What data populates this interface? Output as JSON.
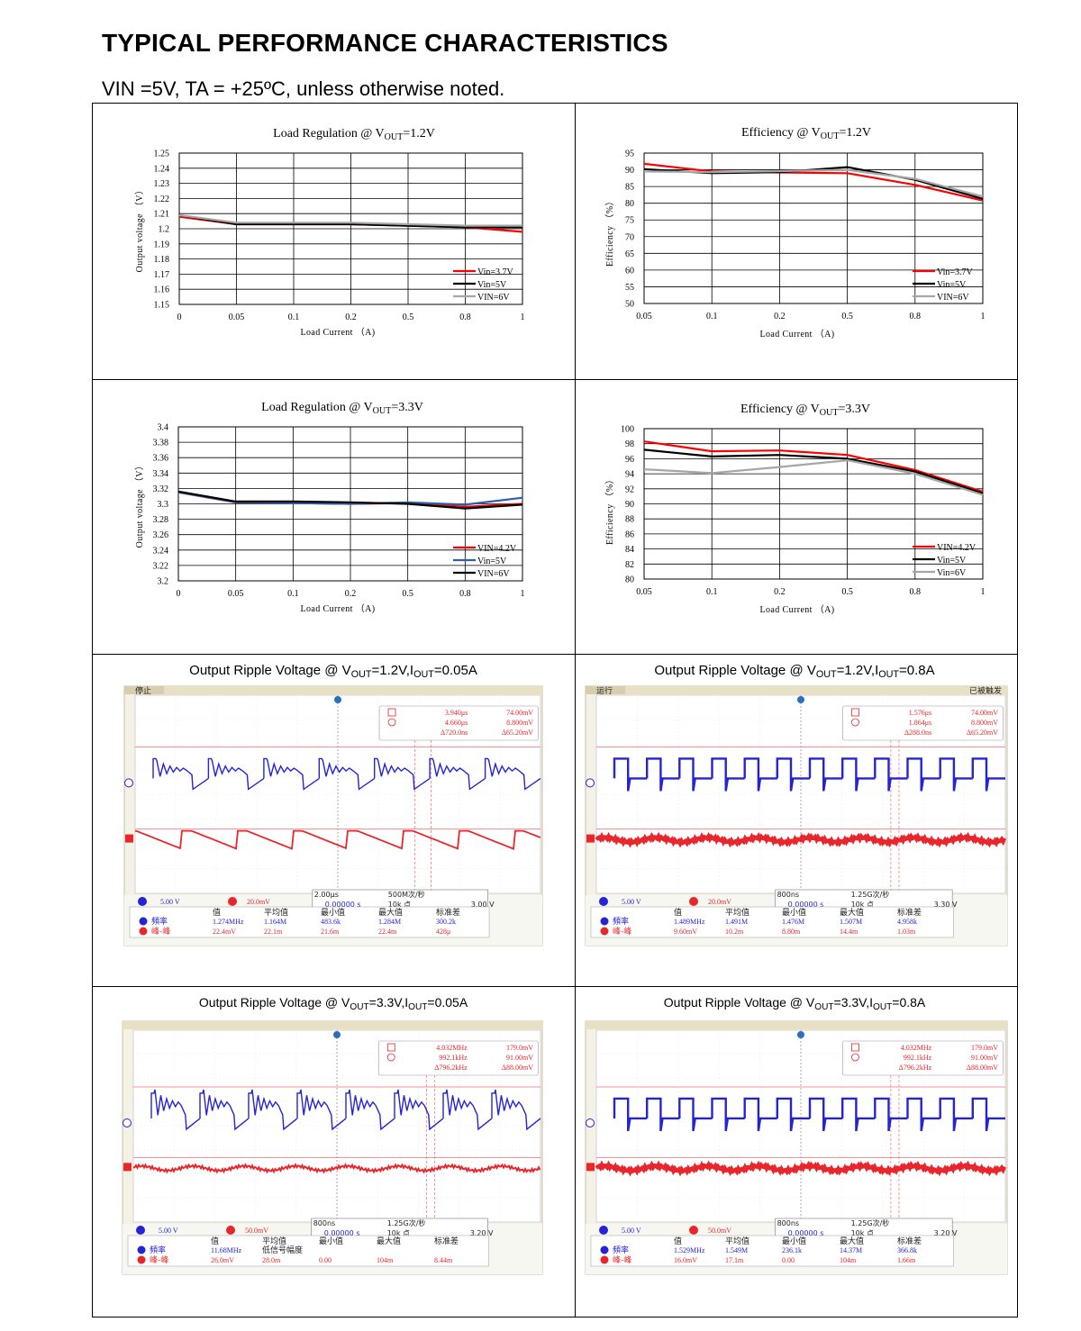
{
  "heading": "TYPICAL PERFORMANCE CHARACTERISTICS",
  "subheading": "VIN =5V, TA = +25ºC, unless otherwise noted.",
  "chart_data": [
    {
      "type": "line",
      "title": "Load Regulation @ VOUT=1.2V",
      "title_parts": {
        "pre": "Load Regulation @ V",
        "sub": "OUT",
        "post": "=1.2V"
      },
      "xlabel": "Load Current （A)",
      "ylabel": "Output voltage （V）",
      "x": [
        "0",
        "0.05",
        "0.1",
        "0.2",
        "0.5",
        "0.8",
        "1"
      ],
      "yticks": [
        "1.25",
        "1.24",
        "1.23",
        "1.22",
        "1.21",
        "1.2",
        "1.19",
        "1.18",
        "1.17",
        "1.16",
        "1.15"
      ],
      "ylim": [
        1.15,
        1.25
      ],
      "series": [
        {
          "name": "Vin=3.7V",
          "color": "#ff0000",
          "values": [
            1.208,
            1.203,
            1.203,
            1.203,
            1.202,
            1.201,
            1.198
          ]
        },
        {
          "name": "Vin=5V",
          "color": "#000000",
          "values": [
            1.209,
            1.203,
            1.203,
            1.203,
            1.202,
            1.201,
            1.201
          ]
        },
        {
          "name": "VIN=6V",
          "color": "#a6a6a6",
          "values": [
            1.209,
            1.204,
            1.204,
            1.204,
            1.203,
            1.202,
            1.202
          ]
        }
      ],
      "legend": "bottom-right",
      "grid": true
    },
    {
      "type": "line",
      "title": "Efficiency @ VOUT=1.2V",
      "title_parts": {
        "pre": "Efficiency @ V",
        "sub": "OUT",
        "post": "=1.2V"
      },
      "xlabel": "Load Current （A)",
      "ylabel": "Efficiency （%）",
      "x": [
        "0.05",
        "0.1",
        "0.2",
        "0.5",
        "0.8",
        "1"
      ],
      "yticks": [
        "95",
        "90",
        "85",
        "80",
        "75",
        "70",
        "65",
        "60",
        "55",
        "50"
      ],
      "ylim": [
        50,
        95
      ],
      "series": [
        {
          "name": "Vin=3.7V",
          "color": "#ff0000",
          "values": [
            91.8,
            89.5,
            89.2,
            89.0,
            85.5,
            80.8
          ]
        },
        {
          "name": "Vin=5V",
          "color": "#000000",
          "values": [
            90.2,
            89.0,
            89.3,
            90.8,
            87.0,
            81.3
          ]
        },
        {
          "name": "VIN=6V",
          "color": "#a6a6a6",
          "values": [
            89.5,
            89.3,
            89.6,
            90.0,
            87.3,
            82.0
          ]
        }
      ],
      "legend": "bottom-right",
      "grid": true
    },
    {
      "type": "line",
      "title": "Load Regulation @ VOUT=3.3V",
      "title_parts": {
        "pre": "Load Regulation @ V",
        "sub": "OUT",
        "post": "=3.3V"
      },
      "xlabel": "Load Current （A)",
      "ylabel": "Output voltage （V）",
      "x": [
        "0",
        "0.05",
        "0.1",
        "0.2",
        "0.5",
        "0.8",
        "1"
      ],
      "yticks": [
        "3.4",
        "3.38",
        "3.36",
        "3.34",
        "3.32",
        "3.3",
        "3.28",
        "3.26",
        "3.24",
        "3.22",
        "3.2"
      ],
      "ylim": [
        3.2,
        3.4
      ],
      "series": [
        {
          "name": "VIN=4.2V",
          "color": "#ff0000",
          "values": [
            3.315,
            3.302,
            3.301,
            3.3,
            3.301,
            3.296,
            3.3
          ]
        },
        {
          "name": "Vin=5V",
          "color": "#2e5fa8",
          "values": [
            3.315,
            3.302,
            3.301,
            3.3,
            3.302,
            3.299,
            3.308
          ]
        },
        {
          "name": "VIN=6V",
          "color": "#000000",
          "values": [
            3.316,
            3.303,
            3.303,
            3.302,
            3.3,
            3.294,
            3.299
          ]
        }
      ],
      "legend": "bottom-right",
      "grid": true
    },
    {
      "type": "line",
      "title": "Efficiency @ VOUT=3.3V",
      "title_parts": {
        "pre": "Efficiency @ V",
        "sub": "OUT",
        "post": "=3.3V"
      },
      "xlabel": "Load Current （A)",
      "ylabel": "Efficiency （%）",
      "x": [
        "0.05",
        "0.1",
        "0.2",
        "0.5",
        "0.8",
        "1"
      ],
      "yticks": [
        "100",
        "98",
        "96",
        "94",
        "92",
        "90",
        "88",
        "86",
        "84",
        "82",
        "80"
      ],
      "ylim": [
        80,
        100
      ],
      "series": [
        {
          "name": "VIN=4.2V",
          "color": "#ff0000",
          "values": [
            98.3,
            97.0,
            97.1,
            96.5,
            94.5,
            91.6
          ]
        },
        {
          "name": "Vin=5V",
          "color": "#000000",
          "values": [
            97.2,
            96.3,
            96.5,
            96.0,
            94.3,
            91.4
          ]
        },
        {
          "name": "Vin=6V",
          "color": "#a6a6a6",
          "values": [
            94.6,
            94.1,
            94.9,
            95.8,
            94.0,
            91.2
          ]
        }
      ],
      "legend": "bottom-right",
      "grid": true
    }
  ],
  "scopes": [
    {
      "title_parts": {
        "pre": "Output Ripple Voltage @ V",
        "s1": "OUT",
        "mid": "=1.2V,I",
        "s2": "OUT",
        "post": "=0.05A"
      },
      "status": "停止",
      "status_right": "",
      "cursor": [
        "3.940μs",
        "4.660μs",
        "Δ720.0ns",
        "74.00mV",
        "8.800mV",
        "Δ65.20mV"
      ],
      "ch1": "5.00 V",
      "ch2": "20.0mV",
      "timebase": [
        "2.00μs",
        "500M次/秒",
        "0.00000 s",
        "10k 点",
        "3.00 V"
      ],
      "meas_header": [
        "值",
        "平均值",
        "最小值",
        "最大值",
        "标准差"
      ],
      "meas_labels": [
        "頻率",
        "峰-峰"
      ],
      "meas1": [
        "1.274MHz",
        "1.164M",
        "483.6k",
        "1.284M",
        "300.2k"
      ],
      "meas2": [
        "22.4mV",
        "22.1m",
        "21.6m",
        "22.4m",
        "428μ"
      ],
      "pattern": "sawtooth-low"
    },
    {
      "title_parts": {
        "pre": "Output Ripple Voltage @ V",
        "s1": "OUT",
        "mid": "=1.2V,I",
        "s2": "OUT",
        "post": "=0.8A"
      },
      "status": "运行",
      "status_right": "已被触发",
      "cursor": [
        "1.576μs",
        "1.864μs",
        "Δ288.0ns",
        "74.00mV",
        "8.800mV",
        "Δ65.20mV"
      ],
      "ch1": "5.00 V",
      "ch2": "20.0mV",
      "timebase": [
        "800ns",
        "1.25G次/秒",
        "0.00000 s",
        "10k 点",
        "3.30 V"
      ],
      "meas_header": [
        "值",
        "平均值",
        "最小值",
        "最大值",
        "标准差"
      ],
      "meas_labels": [
        "頻率",
        "峰-峰"
      ],
      "meas1": [
        "1.489MHz",
        "1.491M",
        "1.476M",
        "1.507M",
        "4.958k"
      ],
      "meas2": [
        "9.60mV",
        "10.2m",
        "8.80m",
        "14.4m",
        "1.03m"
      ],
      "pattern": "square-high"
    },
    {
      "title_parts": {
        "pre": "Output Ripple Voltage @ V",
        "s1": "OUT",
        "mid": "=3.3V,I",
        "s2": "OUT",
        "post": "=0.05A"
      },
      "status": "",
      "status_right": "",
      "cursor": [
        "4.032MHz",
        "992.1kHz",
        "Δ796.2kHz",
        "179.0mV",
        "91.00mV",
        "Δ88.00mV"
      ],
      "ch1": "5.00 V",
      "ch2": "50.0mV",
      "timebase": [
        "800ns",
        "1.25G次/秒",
        "0.00000 s",
        "10k 点",
        "3.20 V"
      ],
      "meas_header": [
        "值",
        "平均值",
        "最小值",
        "最大值",
        "标准差"
      ],
      "meas_labels": [
        "頻率",
        "峰-峰"
      ],
      "meas_note": "低信号幅度",
      "meas1": [
        "11.68MHz",
        "",
        "",
        "",
        ""
      ],
      "meas2": [
        "26.0mV",
        "28.0m",
        "0.00",
        "104m",
        "8.44m"
      ],
      "pattern": "ring-low"
    },
    {
      "title_parts": {
        "pre": "Output Ripple Voltage @ V",
        "s1": "OUT",
        "mid": "=3.3V,I",
        "s2": "OUT",
        "post": "=0.8A"
      },
      "status": "",
      "status_right": "",
      "cursor": [
        "4.032MHz",
        "992.1kHz",
        "Δ796.2kHz",
        "179.0mV",
        "91.00mV",
        "Δ88.00mV"
      ],
      "ch1": "5.00 V",
      "ch2": "50.0mV",
      "timebase": [
        "800ns",
        "1.25G次/秒",
        "0.00000 s",
        "10k 点",
        "3.20 V"
      ],
      "meas_header": [
        "值",
        "平均值",
        "最小值",
        "最大值",
        "标准差"
      ],
      "meas_labels": [
        "頻率",
        "峰-峰"
      ],
      "meas1": [
        "1.529MHz",
        "1.549M",
        "236.1k",
        "14.37M",
        "366.8k"
      ],
      "meas2": [
        "16.0mV",
        "17.1m",
        "0.00",
        "104m",
        "1.66m"
      ],
      "pattern": "square-high"
    }
  ]
}
